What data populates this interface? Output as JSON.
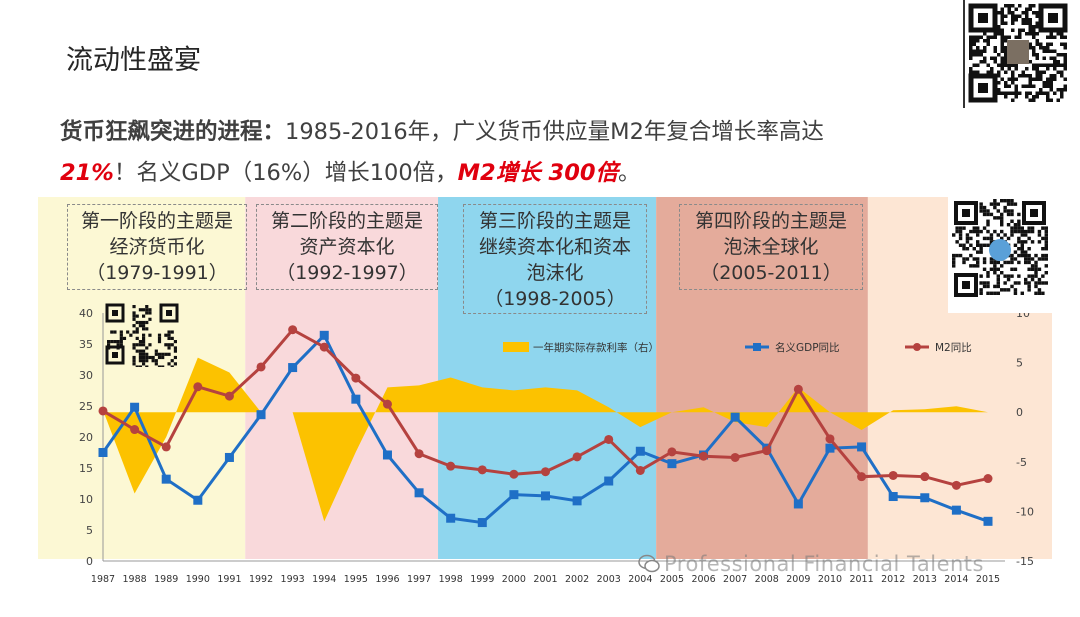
{
  "slide_title": "流动性盛宴",
  "headline": {
    "lead": "货币狂飙突进的进程：",
    "text1": "1985-2016年，广义货币供应量M2年复合增长率高达",
    "highlight1": "21%",
    "text2": "！名义GDP（16%）增长100倍，",
    "highlight2": "M2增长 300倍",
    "text3": "。"
  },
  "phases": [
    {
      "line1": "第一阶段的主题是",
      "line2": "经济货币化",
      "line3": "（1979-1991）",
      "color": "#fcf8d4"
    },
    {
      "line1": "第二阶段的主题是",
      "line2": "资产资本化",
      "line3": "（1992-1997）",
      "color": "#f9d9db"
    },
    {
      "line1": "第三阶段的主题是",
      "line2": "继续资本化和资本",
      "line3": "泡沫化",
      "line4": "（1998-2005）",
      "color": "#8fd6ee"
    },
    {
      "line1": "第四阶段的主题是",
      "line2": "泡沫全球化",
      "line3": "（2005-2011）",
      "color": "#e4ab9b"
    }
  ],
  "watermark": "Professional Financial Talents",
  "colors": {
    "deposit_rate": "#fcc200",
    "gdp": "#1f6fc6",
    "m2": "#b5423f",
    "phase5": "#fde6d4"
  },
  "chart_data": {
    "type": "line",
    "years": [
      "1987",
      "1988",
      "1989",
      "1990",
      "1991",
      "1992",
      "1993",
      "1994",
      "1995",
      "1996",
      "1997",
      "1998",
      "1999",
      "2000",
      "2001",
      "2002",
      "2003",
      "2004",
      "2005",
      "2006",
      "2007",
      "2008",
      "2009",
      "2010",
      "2011",
      "2012",
      "2013",
      "2014",
      "2015"
    ],
    "series": [
      {
        "name": "一年期实际存款利率（右）",
        "type": "area",
        "axis": "right",
        "values": [
          0.2,
          -8.2,
          -2.5,
          5.5,
          4,
          0,
          0,
          -11,
          -4,
          2.5,
          2.7,
          3.5,
          2.5,
          2.2,
          2.5,
          2.2,
          0.5,
          -1.5,
          0,
          0.5,
          -1,
          -1.5,
          2.5,
          0,
          -1.8,
          0.2,
          0.3,
          0.6,
          0
        ]
      },
      {
        "name": "名义GDP同比",
        "type": "line",
        "marker": "square",
        "axis": "left",
        "values": [
          17.5,
          24.8,
          13.2,
          9.8,
          16.7,
          23.6,
          31.2,
          36.4,
          26.1,
          17.1,
          11,
          6.9,
          6.2,
          10.7,
          10.5,
          9.7,
          12.9,
          17.7,
          15.7,
          17.1,
          23.2,
          18.2,
          9.2,
          18.2,
          18.4,
          10.4,
          10.2,
          8.2,
          6.4
        ]
      },
      {
        "name": "M2同比",
        "type": "line",
        "marker": "circle",
        "axis": "left",
        "values": [
          24.2,
          21.2,
          18.4,
          28.1,
          26.6,
          31.3,
          37.3,
          34.5,
          29.5,
          25.3,
          17.3,
          15.3,
          14.7,
          14.0,
          14.4,
          16.8,
          19.6,
          14.6,
          17.6,
          16.9,
          16.7,
          17.8,
          27.7,
          19.7,
          13.6,
          13.8,
          13.6,
          12.2,
          13.3
        ]
      }
    ],
    "y_left": {
      "min": 0,
      "max": 40,
      "ticks": [
        0,
        5,
        10,
        15,
        20,
        25,
        30,
        35,
        40
      ]
    },
    "y_right": {
      "min": -15,
      "max": 10,
      "ticks": [
        -15,
        -10,
        -5,
        0,
        5,
        10
      ]
    },
    "legend_position": "top"
  }
}
